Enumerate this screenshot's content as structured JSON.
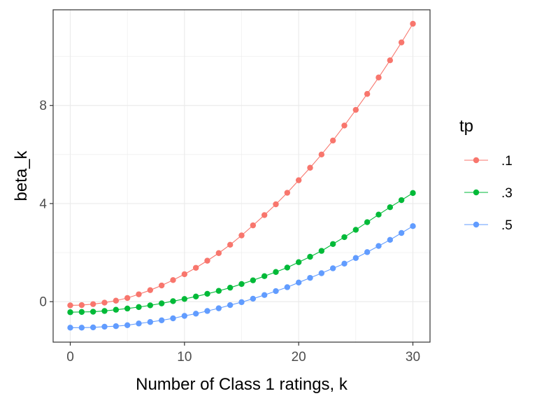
{
  "chart_data": {
    "type": "line",
    "xlabel": "Number of Class 1 ratings, k",
    "ylabel": "beta_k",
    "xlim": [
      -1.5,
      31.5
    ],
    "ylim": [
      -1.65,
      11.9
    ],
    "x_ticks": [
      0,
      10,
      20,
      30
    ],
    "x_tick_labels": [
      "0",
      "10",
      "20",
      "30"
    ],
    "y_ticks": [
      0,
      4,
      8
    ],
    "y_tick_labels": [
      "0",
      "4",
      "8"
    ],
    "grid": true,
    "legend": {
      "title": "tp",
      "position": "right"
    },
    "x": [
      0,
      1,
      2,
      3,
      4,
      5,
      6,
      7,
      8,
      9,
      10,
      11,
      12,
      13,
      14,
      15,
      16,
      17,
      18,
      19,
      20,
      21,
      22,
      23,
      24,
      25,
      26,
      27,
      28,
      29,
      30
    ],
    "series": [
      {
        "name": ".1",
        "color": "#F8766D",
        "values": [
          -0.15,
          -0.14,
          -0.1,
          -0.04,
          0.04,
          0.15,
          0.3,
          0.47,
          0.66,
          0.88,
          1.12,
          1.38,
          1.67,
          1.98,
          2.32,
          2.7,
          3.11,
          3.53,
          3.97,
          4.44,
          4.95,
          5.46,
          6.0,
          6.57,
          7.18,
          7.82,
          8.47,
          9.14,
          9.84,
          10.57,
          11.33
        ]
      },
      {
        "name": ".3",
        "color": "#00BA38",
        "values": [
          -0.43,
          -0.42,
          -0.41,
          -0.38,
          -0.33,
          -0.28,
          -0.22,
          -0.15,
          -0.07,
          0.02,
          0.11,
          0.21,
          0.32,
          0.44,
          0.57,
          0.72,
          0.87,
          1.04,
          1.21,
          1.39,
          1.61,
          1.83,
          2.07,
          2.35,
          2.63,
          2.93,
          3.24,
          3.55,
          3.85,
          4.14,
          4.43
        ]
      },
      {
        "name": ".5",
        "color": "#619CFF",
        "values": [
          -1.06,
          -1.06,
          -1.05,
          -1.02,
          -1.0,
          -0.96,
          -0.89,
          -0.83,
          -0.76,
          -0.68,
          -0.58,
          -0.49,
          -0.38,
          -0.27,
          -0.14,
          -0.02,
          0.12,
          0.27,
          0.43,
          0.59,
          0.78,
          0.97,
          1.16,
          1.36,
          1.55,
          1.78,
          2.02,
          2.27,
          2.52,
          2.8,
          3.08
        ]
      }
    ]
  }
}
